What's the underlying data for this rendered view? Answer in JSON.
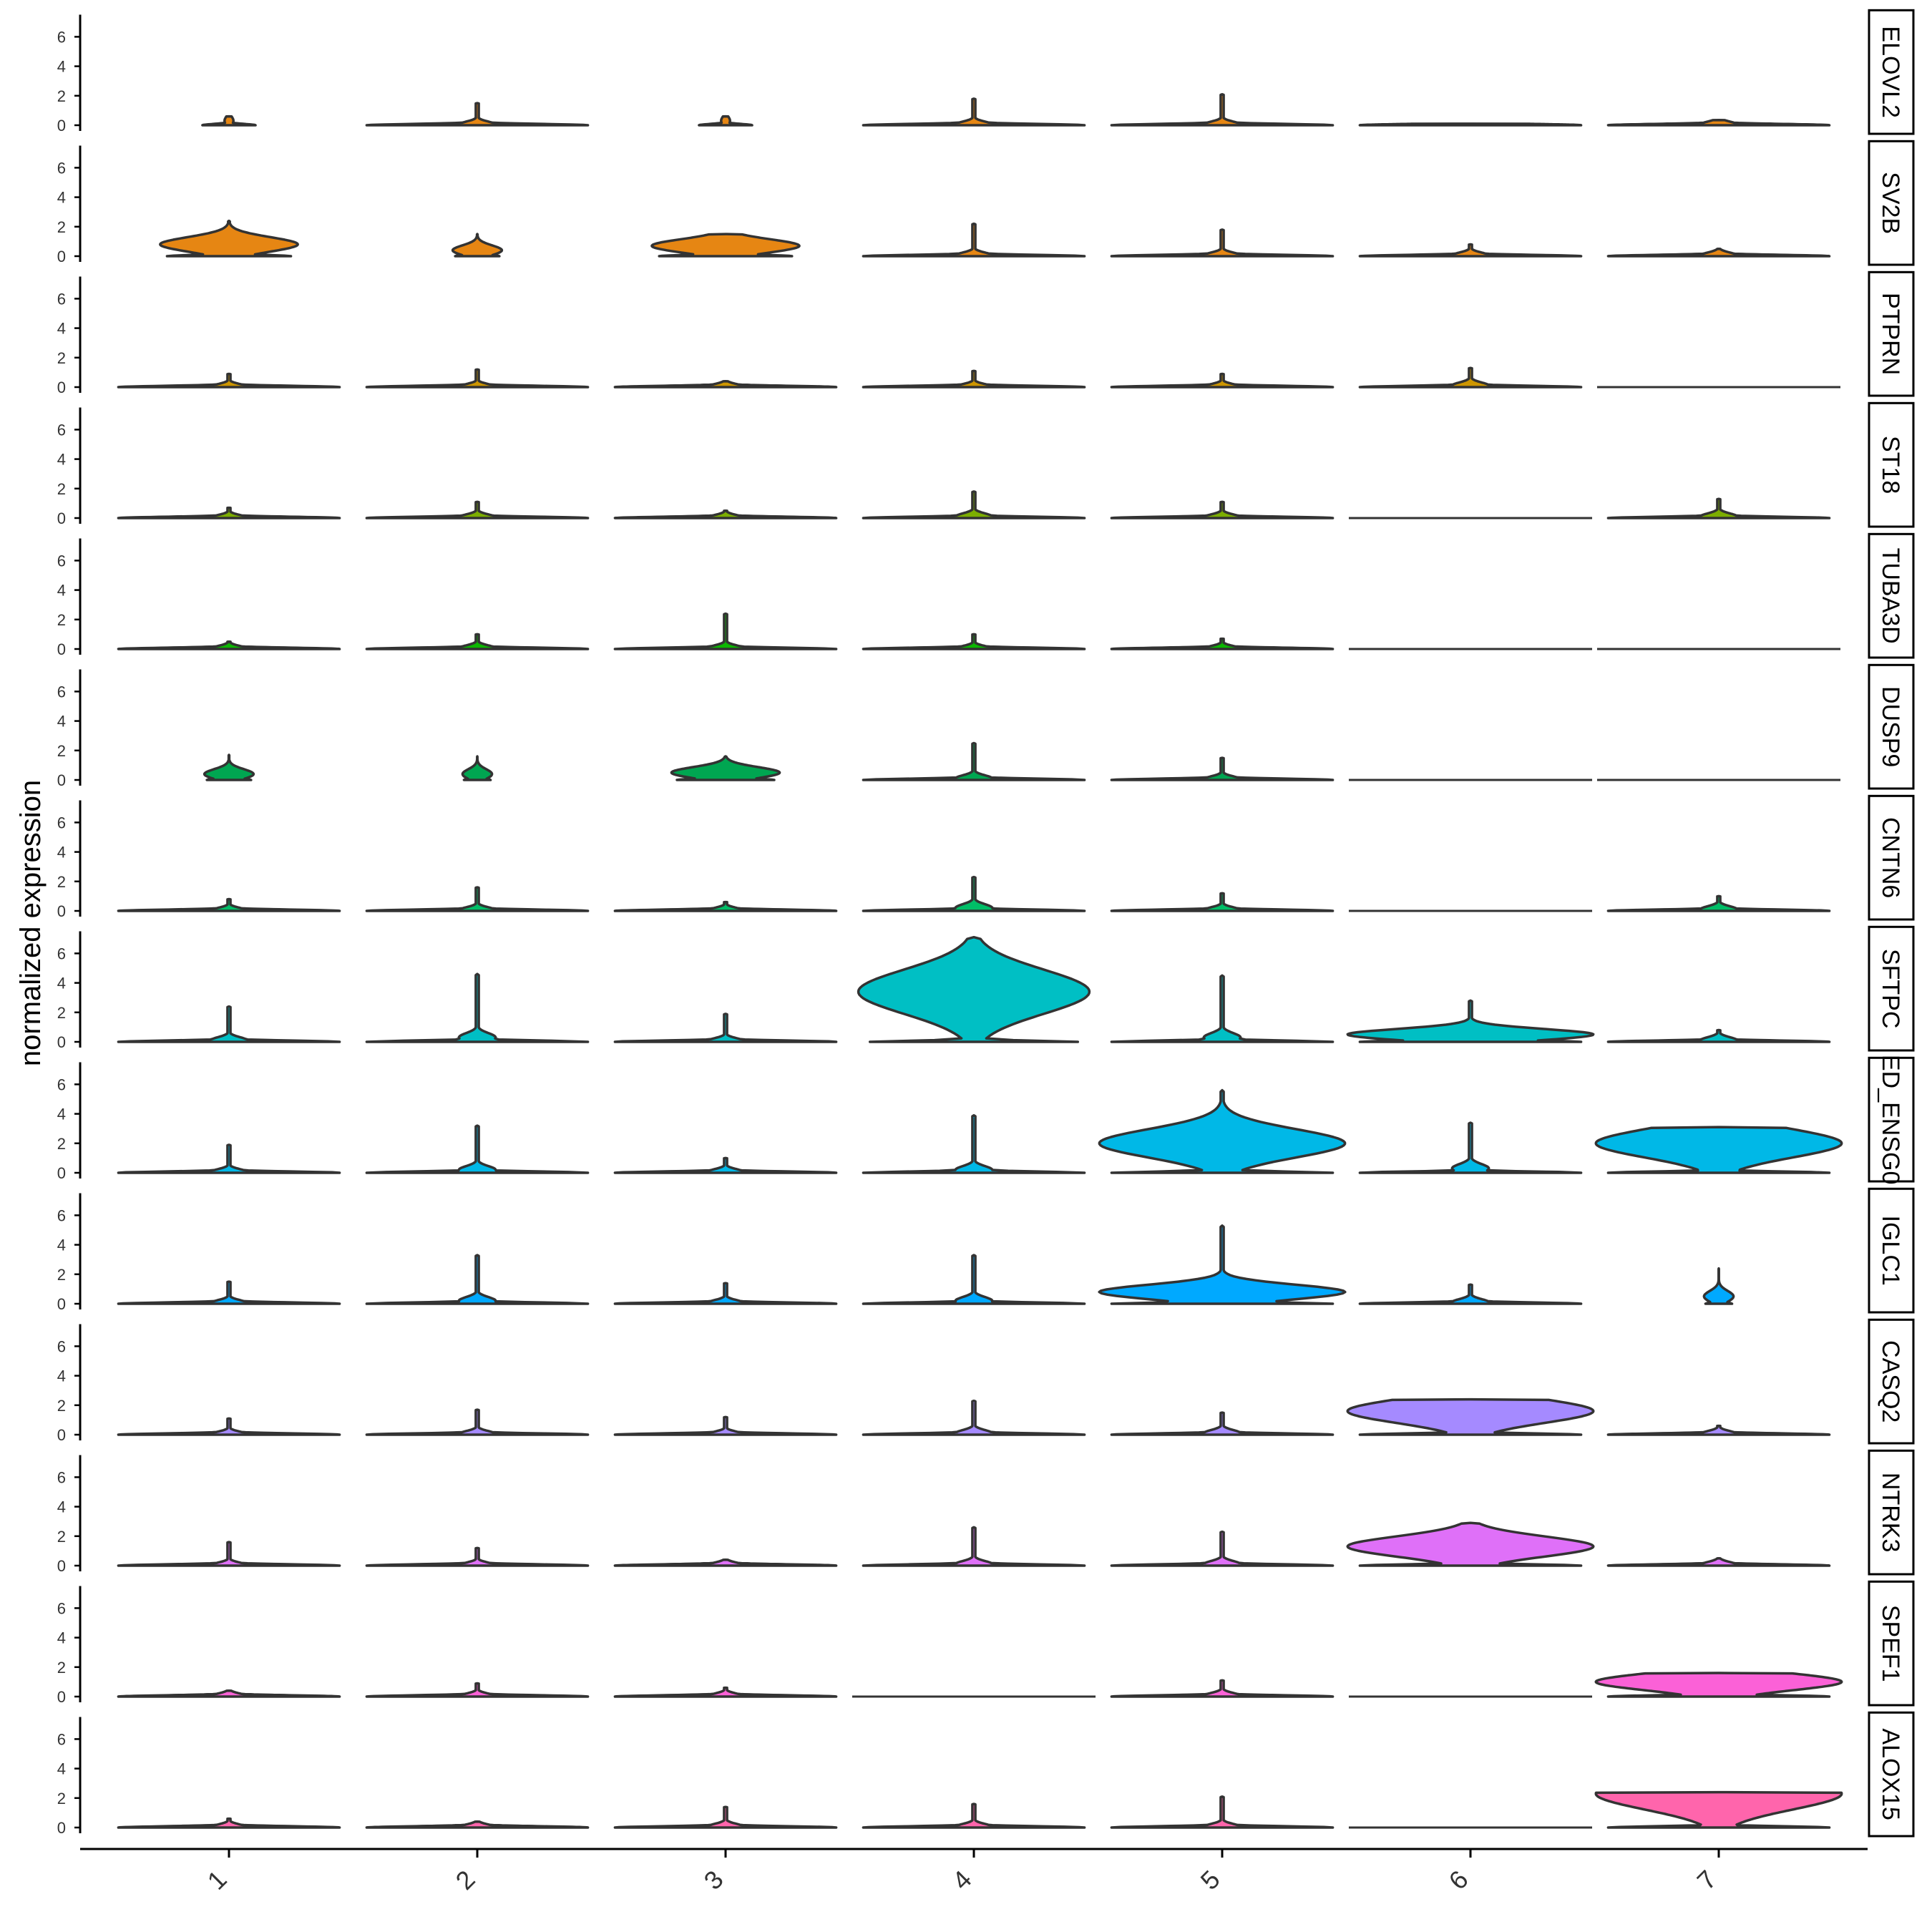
{
  "chart_data": {
    "type": "violin",
    "layout": "stacked panels sharing x axis",
    "ylabel": "normalized expression",
    "x_categories": [
      "1",
      "2",
      "3",
      "4",
      "5",
      "6",
      "7"
    ],
    "y_ticks": [
      "0",
      "2",
      "4",
      "6"
    ],
    "ylim": [
      0,
      7.3
    ],
    "panels": [
      {
        "gene": "ELOVL2",
        "color": "#E68613",
        "violins": [
          {
            "max": 0.6,
            "peak": 0.3,
            "width": 0.12
          },
          {
            "max": 1.5,
            "peak": 0.05,
            "width": 0.5
          },
          {
            "max": 0.6,
            "peak": 0.3,
            "width": 0.12
          },
          {
            "max": 1.8,
            "peak": 0.05,
            "width": 0.5
          },
          {
            "max": 2.1,
            "peak": 0.05,
            "width": 0.5
          },
          {
            "max": 0.1,
            "peak": 0.02,
            "width": 0.5
          },
          {
            "max": 0.35,
            "peak": 0.05,
            "width": 0.5
          }
        ]
      },
      {
        "gene": "SV2B",
        "color": "#E68613",
        "violins": [
          {
            "max": 2.4,
            "peak": 0.8,
            "width": 0.28
          },
          {
            "max": 1.5,
            "peak": 0.4,
            "width": 0.1
          },
          {
            "max": 1.5,
            "peak": 0.7,
            "width": 0.3
          },
          {
            "max": 2.2,
            "peak": 0.05,
            "width": 0.5
          },
          {
            "max": 1.8,
            "peak": 0.05,
            "width": 0.5
          },
          {
            "max": 0.8,
            "peak": 0.05,
            "width": 0.5
          },
          {
            "max": 0.5,
            "peak": 0.05,
            "width": 0.5
          }
        ]
      },
      {
        "gene": "PTPRN",
        "color": "#CD9600",
        "violins": [
          {
            "max": 0.9,
            "peak": 0.02,
            "width": 0.5
          },
          {
            "max": 1.2,
            "peak": 0.02,
            "width": 0.5
          },
          {
            "max": 0.4,
            "peak": 0.02,
            "width": 0.5
          },
          {
            "max": 1.1,
            "peak": 0.02,
            "width": 0.5
          },
          {
            "max": 0.9,
            "peak": 0.02,
            "width": 0.5
          },
          {
            "max": 1.3,
            "peak": 0.1,
            "width": 0.5
          },
          {
            "max": 0.0,
            "peak": 0.0,
            "width": 0.5
          }
        ]
      },
      {
        "gene": "ST18",
        "color": "#7CAE00",
        "violins": [
          {
            "max": 0.7,
            "peak": 0.02,
            "width": 0.5
          },
          {
            "max": 1.1,
            "peak": 0.05,
            "width": 0.5
          },
          {
            "max": 0.5,
            "peak": 0.02,
            "width": 0.5
          },
          {
            "max": 1.8,
            "peak": 0.1,
            "width": 0.5
          },
          {
            "max": 1.1,
            "peak": 0.05,
            "width": 0.5
          },
          {
            "max": 0.0,
            "peak": 0.0,
            "width": 0.5
          },
          {
            "max": 1.3,
            "peak": 0.1,
            "width": 0.5
          }
        ]
      },
      {
        "gene": "TUBA3D",
        "color": "#0CB702",
        "violins": [
          {
            "max": 0.5,
            "peak": 0.02,
            "width": 0.5
          },
          {
            "max": 1.0,
            "peak": 0.05,
            "width": 0.5
          },
          {
            "max": 2.4,
            "peak": 0.05,
            "width": 0.5
          },
          {
            "max": 1.0,
            "peak": 0.02,
            "width": 0.5
          },
          {
            "max": 0.7,
            "peak": 0.02,
            "width": 0.5
          },
          {
            "max": 0.0,
            "peak": 0.0,
            "width": 0.5
          },
          {
            "max": 0.0,
            "peak": 0.0,
            "width": 0.5
          }
        ]
      },
      {
        "gene": "DUSP9",
        "color": "#00A651",
        "violins": [
          {
            "max": 1.7,
            "peak": 0.4,
            "width": 0.1
          },
          {
            "max": 1.6,
            "peak": 0.4,
            "width": 0.06
          },
          {
            "max": 1.6,
            "peak": 0.5,
            "width": 0.22
          },
          {
            "max": 2.5,
            "peak": 0.1,
            "width": 0.5
          },
          {
            "max": 1.5,
            "peak": 0.05,
            "width": 0.5
          },
          {
            "max": 0.0,
            "peak": 0.0,
            "width": 0.5
          },
          {
            "max": 0.0,
            "peak": 0.0,
            "width": 0.5
          }
        ]
      },
      {
        "gene": "CNTN6",
        "color": "#00BE67",
        "violins": [
          {
            "max": 0.8,
            "peak": 0.02,
            "width": 0.5
          },
          {
            "max": 1.6,
            "peak": 0.05,
            "width": 0.5
          },
          {
            "max": 0.6,
            "peak": 0.02,
            "width": 0.5
          },
          {
            "max": 2.3,
            "peak": 0.2,
            "width": 0.5
          },
          {
            "max": 1.2,
            "peak": 0.05,
            "width": 0.5
          },
          {
            "max": 0.0,
            "peak": 0.0,
            "width": 0.5
          },
          {
            "max": 1.0,
            "peak": 0.1,
            "width": 0.5
          }
        ]
      },
      {
        "gene": "SFTPC",
        "color": "#00BFC4",
        "violins": [
          {
            "max": 2.4,
            "peak": 0.1,
            "width": 0.5
          },
          {
            "max": 4.6,
            "peak": 0.3,
            "width": 0.5
          },
          {
            "max": 1.9,
            "peak": 0.05,
            "width": 0.5
          },
          {
            "max": 7.1,
            "peak": 3.4,
            "width": 0.47
          },
          {
            "max": 4.5,
            "peak": 0.3,
            "width": 0.5
          },
          {
            "max": 2.8,
            "peak": 0.5,
            "width": 0.5
          },
          {
            "max": 0.8,
            "peak": 0.1,
            "width": 0.5
          }
        ]
      },
      {
        "gene": "ENSG0",
        "strip_label": "ED_ENSG0",
        "color": "#00B8E7",
        "violins": [
          {
            "max": 1.9,
            "peak": 0.05,
            "width": 0.5
          },
          {
            "max": 3.2,
            "peak": 0.2,
            "width": 0.5
          },
          {
            "max": 1.0,
            "peak": 0.05,
            "width": 0.5
          },
          {
            "max": 3.9,
            "peak": 0.2,
            "width": 0.5
          },
          {
            "max": 5.6,
            "peak": 2.0,
            "width": 0.5
          },
          {
            "max": 3.4,
            "peak": 0.3,
            "width": 0.5
          },
          {
            "max": 3.1,
            "peak": 2.0,
            "width": 0.5
          }
        ]
      },
      {
        "gene": "IGLC1",
        "color": "#00A9FF",
        "violins": [
          {
            "max": 1.5,
            "peak": 0.05,
            "width": 0.5
          },
          {
            "max": 3.3,
            "peak": 0.2,
            "width": 0.5
          },
          {
            "max": 1.4,
            "peak": 0.05,
            "width": 0.5
          },
          {
            "max": 3.3,
            "peak": 0.2,
            "width": 0.5
          },
          {
            "max": 5.3,
            "peak": 0.8,
            "width": 0.5
          },
          {
            "max": 1.3,
            "peak": 0.1,
            "width": 0.5
          },
          {
            "max": 2.4,
            "peak": 0.5,
            "width": 0.06
          }
        ]
      },
      {
        "gene": "CASQ2",
        "color": "#A58AFF",
        "violins": [
          {
            "max": 1.1,
            "peak": 0.02,
            "width": 0.5
          },
          {
            "max": 1.7,
            "peak": 0.05,
            "width": 0.5
          },
          {
            "max": 1.2,
            "peak": 0.02,
            "width": 0.5
          },
          {
            "max": 2.3,
            "peak": 0.1,
            "width": 0.5
          },
          {
            "max": 1.5,
            "peak": 0.1,
            "width": 0.5
          },
          {
            "max": 2.4,
            "peak": 1.6,
            "width": 0.5
          },
          {
            "max": 0.6,
            "peak": 0.05,
            "width": 0.5
          }
        ]
      },
      {
        "gene": "NTRK3",
        "color": "#DF70F8",
        "violins": [
          {
            "max": 1.6,
            "peak": 0.02,
            "width": 0.5
          },
          {
            "max": 1.2,
            "peak": 0.02,
            "width": 0.5
          },
          {
            "max": 0.4,
            "peak": 0.02,
            "width": 0.5
          },
          {
            "max": 2.6,
            "peak": 0.1,
            "width": 0.5
          },
          {
            "max": 2.3,
            "peak": 0.1,
            "width": 0.5
          },
          {
            "max": 2.9,
            "peak": 1.3,
            "width": 0.5
          },
          {
            "max": 0.5,
            "peak": 0.05,
            "width": 0.5
          }
        ]
      },
      {
        "gene": "SPEF1",
        "color": "#FB61D7",
        "violins": [
          {
            "max": 0.4,
            "peak": 0.02,
            "width": 0.5
          },
          {
            "max": 0.9,
            "peak": 0.02,
            "width": 0.5
          },
          {
            "max": 0.6,
            "peak": 0.02,
            "width": 0.5
          },
          {
            "max": 0.0,
            "peak": 0.0,
            "width": 0.5
          },
          {
            "max": 1.1,
            "peak": 0.05,
            "width": 0.5
          },
          {
            "max": 0.0,
            "peak": 0.0,
            "width": 0.5
          },
          {
            "max": 1.6,
            "peak": 1.0,
            "width": 0.5
          }
        ]
      },
      {
        "gene": "ALOX15",
        "color": "#FF65AC",
        "violins": [
          {
            "max": 0.6,
            "peak": 0.02,
            "width": 0.5
          },
          {
            "max": 0.4,
            "peak": 0.02,
            "width": 0.5
          },
          {
            "max": 1.4,
            "peak": 0.05,
            "width": 0.5
          },
          {
            "max": 1.6,
            "peak": 0.05,
            "width": 0.5
          },
          {
            "max": 2.1,
            "peak": 0.05,
            "width": 0.5
          },
          {
            "max": 0.0,
            "peak": 0.0,
            "width": 0.5
          },
          {
            "max": 2.4,
            "peak": 2.3,
            "width": 0.5
          }
        ]
      }
    ]
  }
}
